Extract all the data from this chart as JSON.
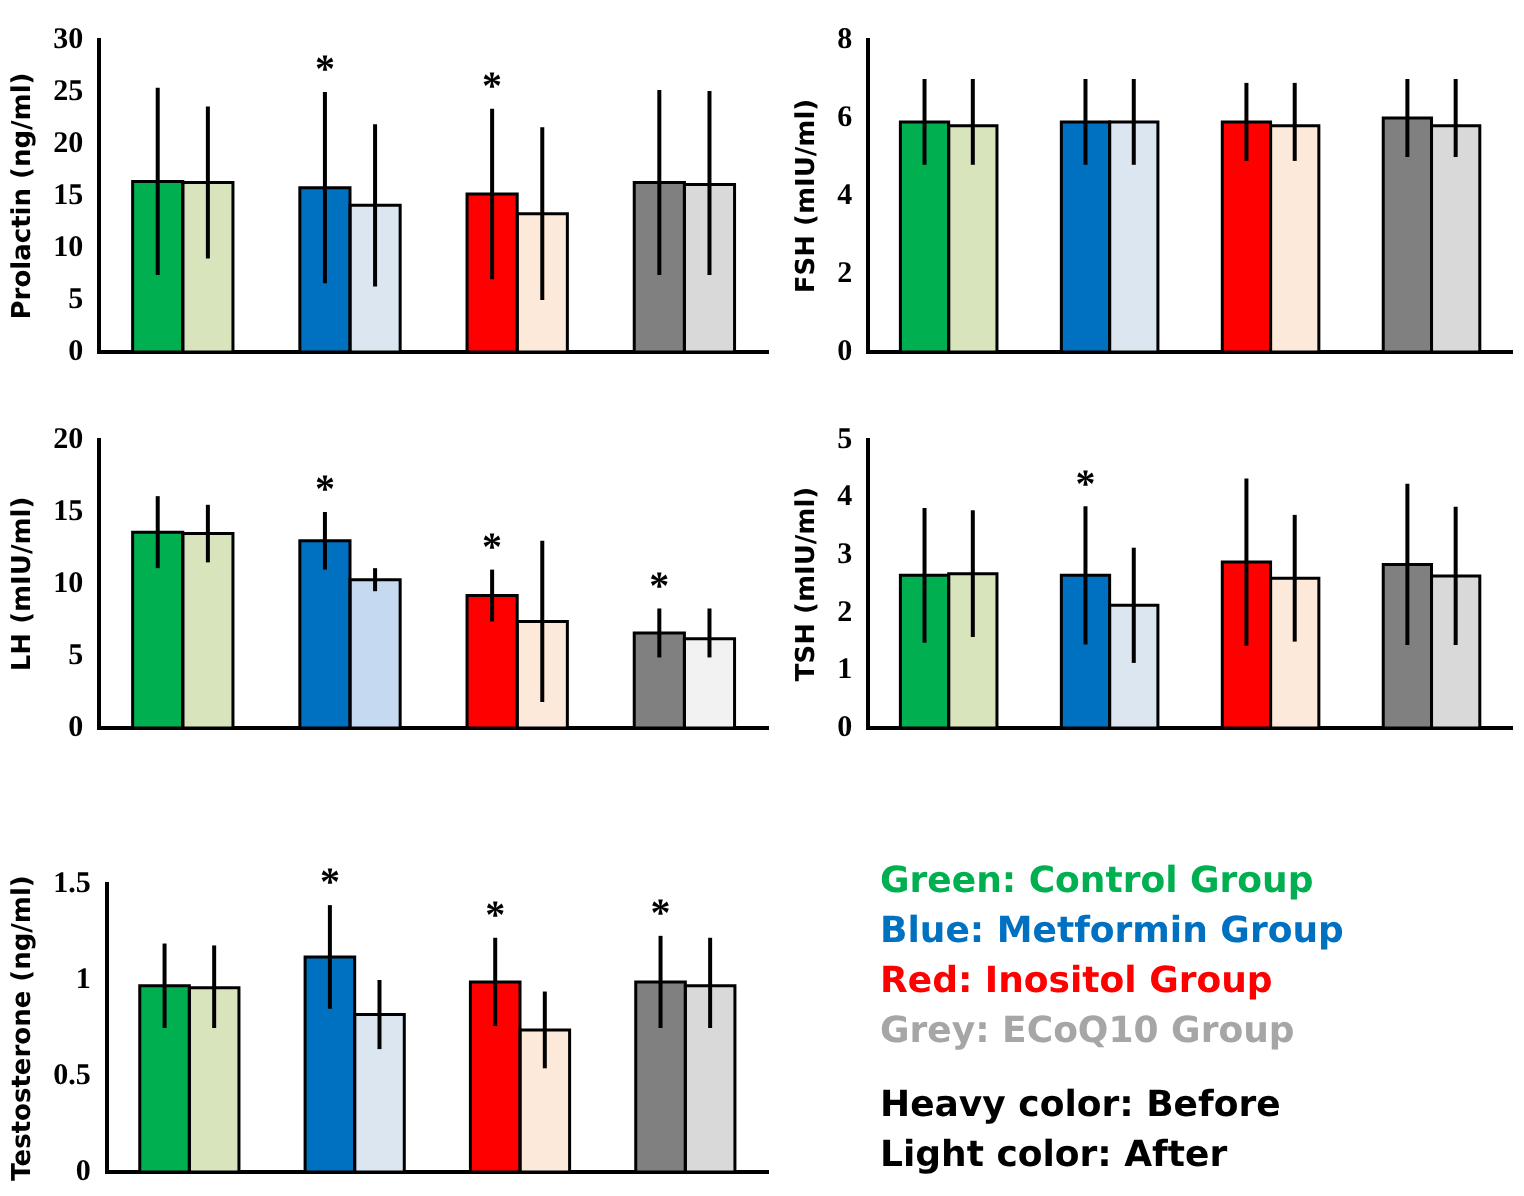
{
  "chart_data": [
    {
      "type": "bar",
      "ylabel": "Prolactin (ng/ml)",
      "categories": [
        null,
        null,
        null,
        null
      ],
      "ylim": [
        0,
        30
      ],
      "yticks": [
        0,
        5,
        10,
        15,
        20,
        25,
        30
      ],
      "grid": false,
      "legend": false,
      "tick_labels": "y",
      "annotations": [
        {
          "text": "*",
          "y": 25
        },
        {
          "text": "*",
          "y": 23.4
        }
      ],
      "series": [
        {
          "colors": [
            "#00b050",
            "#0070c0",
            "#ff0000",
            "#808080"
          ],
          "values": [
            16.4,
            15.8,
            15.2,
            16.3
          ],
          "errors": [
            9,
            9.2,
            8.2,
            8.9
          ]
        },
        {
          "colors": [
            "#d8e4bc",
            "#dce6f1",
            "#fde9d9",
            "#d9d9d9"
          ],
          "values": [
            16.3,
            14.1,
            13.3,
            16.1
          ],
          "errors": [
            7.3,
            7.8,
            8.3,
            [
              7.4,
              25.1
            ]
          ]
        }
      ]
    },
    {
      "type": "bar",
      "ylabel": "FSH (mIU/ml)",
      "categories": [
        null,
        null,
        null,
        null
      ],
      "ylim": [
        0,
        8
      ],
      "yticks": [
        0,
        2,
        4,
        6,
        8
      ],
      "grid": false,
      "legend": false,
      "tick_labels": "y",
      "series": [
        {
          "colors": [
            "#00b050",
            "#0070c0",
            "#ff0000",
            "#808080"
          ],
          "values": [
            5.9,
            5.9,
            5.9,
            6.0
          ],
          "errors": [
            1.1,
            1.1,
            1.0,
            1.0
          ]
        },
        {
          "colors": [
            "#d8e4bc",
            "#dce6f1",
            "#fde9d9",
            "#d9d9d9"
          ],
          "values": [
            5.8,
            5.9,
            5.8,
            5.8
          ],
          "errors": [
            [
              4.8,
              7.0
            ],
            1.1,
            [
              4.9,
              6.9
            ],
            [
              5.0,
              7.0
            ]
          ]
        }
      ]
    },
    {
      "type": "bar",
      "ylabel": "LH (mIU/ml)",
      "categories": [
        null,
        null,
        null,
        null
      ],
      "ylim": [
        0,
        20
      ],
      "yticks": [
        0,
        5,
        10,
        15,
        20
      ],
      "grid": false,
      "legend": false,
      "tick_labels": "y",
      "annotations": [
        {
          "text": "*",
          "y": 15
        },
        {
          "text": "*",
          "y": 11
        },
        {
          "text": "*",
          "y": 8.3
        }
      ],
      "series": [
        {
          "colors": [
            "#00b050",
            "#0070c0",
            "#ff0000",
            "#808080"
          ],
          "values": [
            13.6,
            13.0,
            9.2,
            6.6
          ],
          "errors": [
            2.5,
            2,
            1.8,
            1.7
          ]
        },
        {
          "colors": [
            "#d8e4bc",
            "#c5d9f1",
            "#fde9d9",
            "#f2f2f2"
          ],
          "values": [
            13.5,
            10.3,
            7.4,
            6.2
          ],
          "errors": [
            2,
            0.8,
            5.6,
            [
              4.9,
              8.3
            ]
          ]
        }
      ]
    },
    {
      "type": "bar",
      "ylabel": "TSH (mIU/ml)",
      "categories": [
        null,
        null,
        null,
        null
      ],
      "ylim": [
        0,
        5
      ],
      "yticks": [
        0,
        1,
        2,
        3,
        4,
        5
      ],
      "grid": false,
      "legend": false,
      "tick_labels": "y",
      "annotations": [
        {
          "text": "*",
          "y": 3.85
        }
      ],
      "series": [
        {
          "colors": [
            "#00b050",
            "#0070c0",
            "#ff0000",
            "#808080"
          ],
          "values": [
            2.65,
            2.65,
            2.88,
            2.84
          ],
          "errors": [
            1.17,
            1.2,
            1.45,
            1.4
          ]
        },
        {
          "colors": [
            "#d8e4bc",
            "#dce6f1",
            "#fde9d9",
            "#d9d9d9"
          ],
          "values": [
            2.68,
            2.13,
            2.6,
            2.64
          ],
          "errors": [
            1.1,
            1.0,
            1.1,
            1.2
          ]
        }
      ]
    },
    {
      "type": "bar",
      "ylabel": "Testosterone (ng/ml)",
      "categories": [
        null,
        null,
        null,
        null
      ],
      "ylim": [
        0,
        1.5
      ],
      "yticks": [
        0,
        0.5,
        1,
        1.5
      ],
      "grid": false,
      "legend": false,
      "tick_labels": "y",
      "annotations": [
        {
          "text": "*",
          "y": 1.39
        },
        {
          "text": "*",
          "y": 1.22
        },
        {
          "text": "*",
          "y": 1.23
        }
      ],
      "series": [
        {
          "colors": [
            "#00b050",
            "#0070c0",
            "#ff0000",
            "#808080"
          ],
          "values": [
            0.97,
            1.12,
            0.99,
            0.99
          ],
          "errors": [
            0.22,
            0.27,
            0.23,
            0.24
          ]
        },
        {
          "colors": [
            "#d8e4bc",
            "#dce6f1",
            "#fde9d9",
            "#d9d9d9"
          ],
          "values": [
            0.96,
            0.82,
            0.74,
            0.97
          ],
          "errors": [
            [
              0.75,
              1.18
            ],
            0.18,
            0.2,
            [
              0.75,
              1.22
            ]
          ]
        }
      ]
    },
    {
      "type": "other",
      "annotations": [
        "Green: Control Group",
        "Blue: Metformin Group",
        "Red: Inositol Group",
        "Grey: ECoQ10 Group",
        "Heavy color: Before",
        "Light color: After"
      ],
      "colors": [
        "#00b050",
        "#0070c0",
        "#ff0000",
        "#a6a6a6",
        "#000000",
        "#000000"
      ]
    }
  ]
}
